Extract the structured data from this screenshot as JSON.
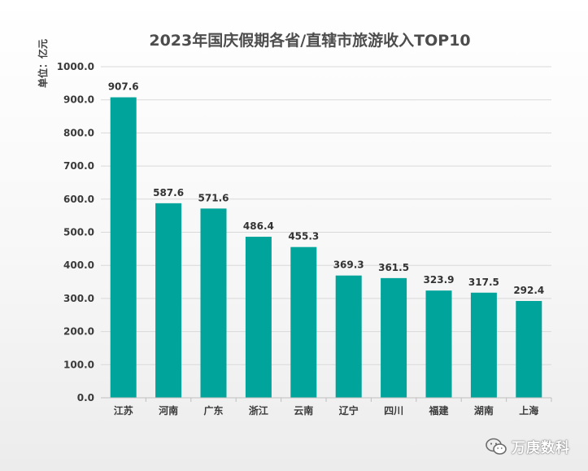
{
  "chart_data": {
    "type": "bar",
    "title": "2023年国庆假期各省/直辖市旅游收入TOP10",
    "unit_label": "单位：亿元",
    "xlabel": "",
    "ylabel": "单位：亿元",
    "categories": [
      "江苏",
      "河南",
      "广东",
      "浙江",
      "云南",
      "辽宁",
      "四川",
      "福建",
      "湖南",
      "上海"
    ],
    "values": [
      907.6,
      587.6,
      571.6,
      486.4,
      455.3,
      369.3,
      361.5,
      323.9,
      317.5,
      292.4
    ],
    "value_labels": [
      "907.6",
      "587.6",
      "571.6",
      "486.4",
      "455.3",
      "369.3",
      "361.5",
      "323.9",
      "317.5",
      "292.4"
    ],
    "ylim": [
      0,
      1000
    ],
    "yticks": [
      0,
      100,
      200,
      300,
      400,
      500,
      600,
      700,
      800,
      900,
      1000
    ],
    "ytick_labels": [
      "0.0",
      "100.0",
      "200.0",
      "300.0",
      "400.0",
      "500.0",
      "600.0",
      "700.0",
      "800.0",
      "900.0",
      "1000.0"
    ],
    "grid": true,
    "bar_color": "#00a49a"
  },
  "watermark": {
    "icon": "wechat-icon",
    "text": "万庚数科"
  }
}
